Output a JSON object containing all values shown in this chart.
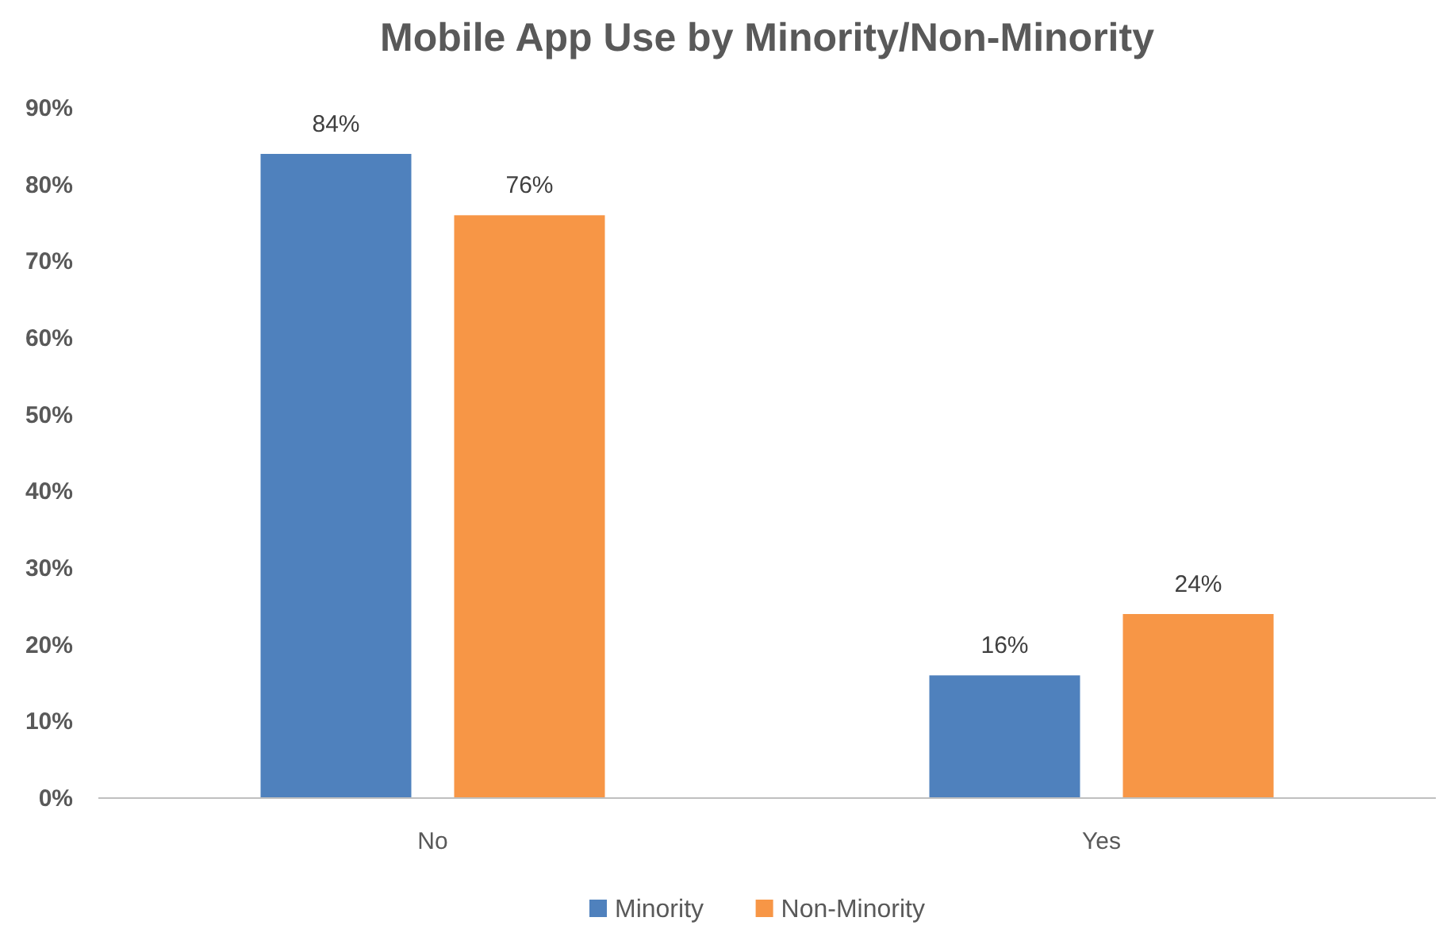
{
  "chart_data": {
    "type": "bar",
    "title": "Mobile App Use by Minority/Non-Minority",
    "categories": [
      "No",
      "Yes"
    ],
    "series": [
      {
        "name": "Minority",
        "color": "#4f81bd",
        "values": [
          84,
          16
        ],
        "value_labels": [
          "84%",
          "16%"
        ]
      },
      {
        "name": "Non-Minority",
        "color": "#f79646",
        "values": [
          76,
          24
        ],
        "value_labels": [
          "76%",
          "24%"
        ]
      }
    ],
    "ylim": [
      0,
      90
    ],
    "yticks": [
      {
        "value": 0,
        "label": "0%"
      },
      {
        "value": 10,
        "label": "10%"
      },
      {
        "value": 20,
        "label": "20%"
      },
      {
        "value": 30,
        "label": "30%"
      },
      {
        "value": 40,
        "label": "40%"
      },
      {
        "value": 50,
        "label": "50%"
      },
      {
        "value": 60,
        "label": "60%"
      },
      {
        "value": 70,
        "label": "70%"
      },
      {
        "value": 80,
        "label": "80%"
      },
      {
        "value": 90,
        "label": "90%"
      }
    ],
    "grid": false,
    "legend": "bottom"
  }
}
